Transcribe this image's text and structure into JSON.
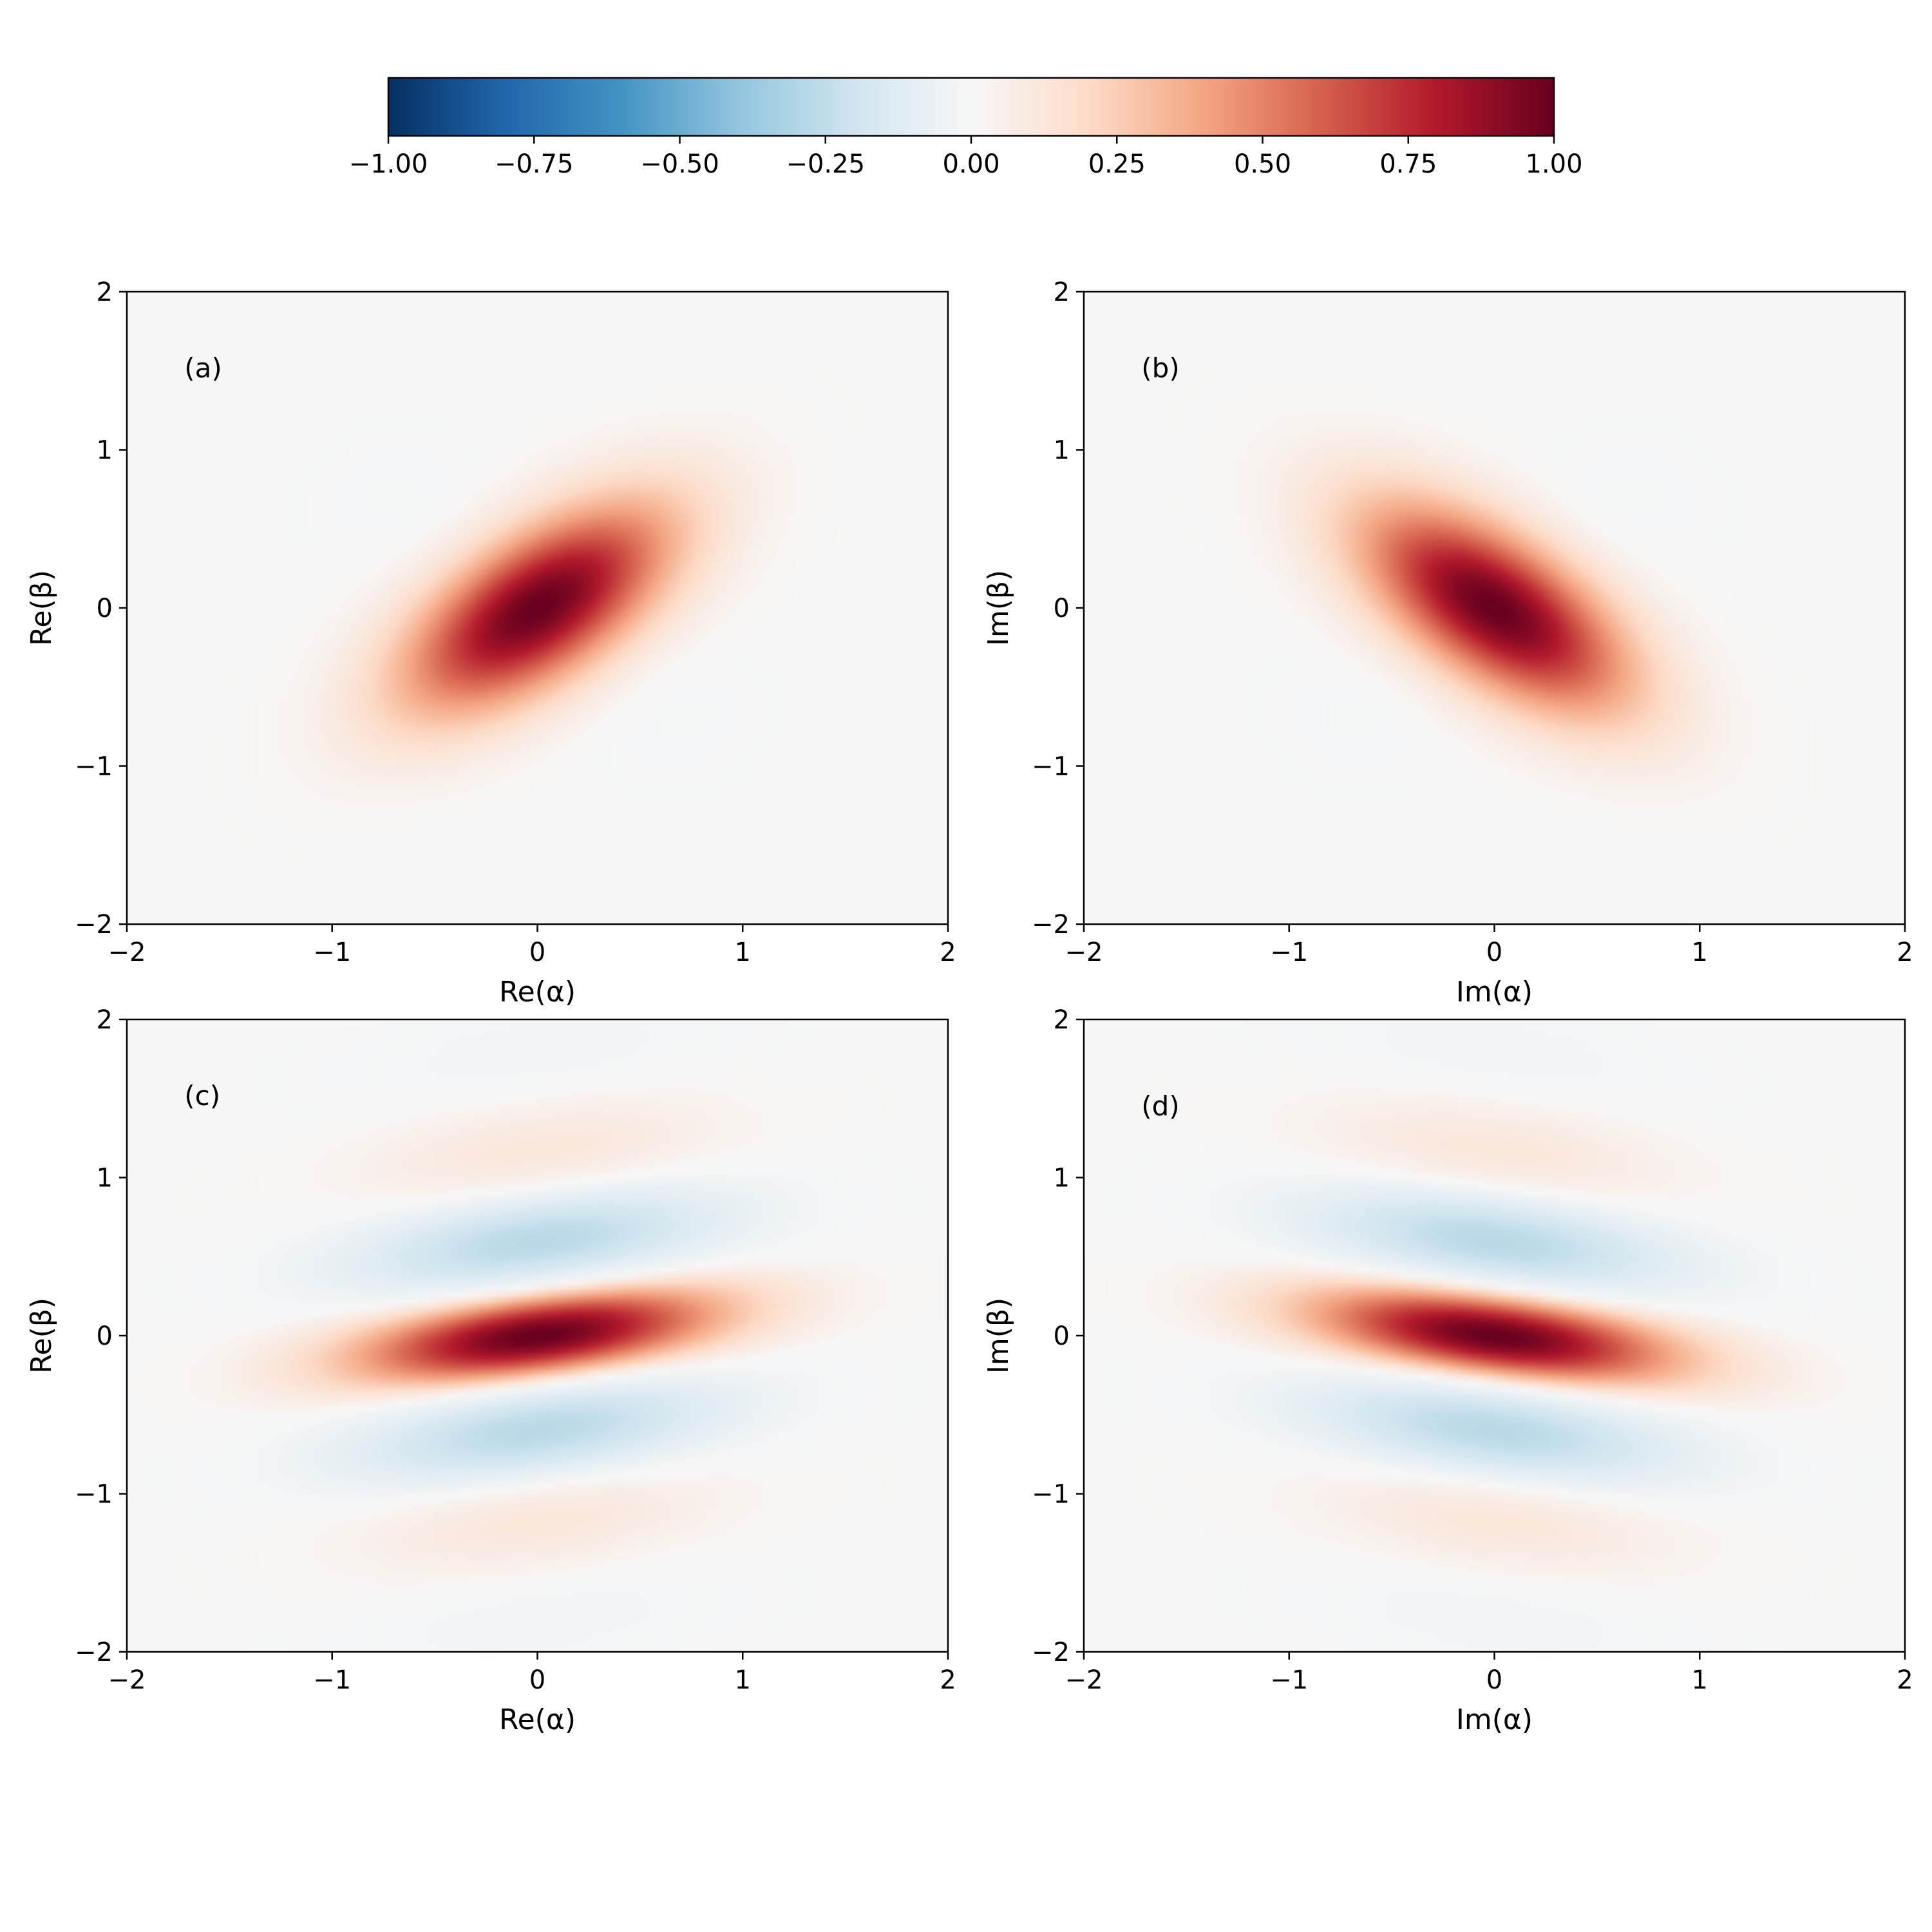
{
  "colorbar": {
    "colormap": "RdBu_r",
    "min": -1.0,
    "max": 1.0,
    "tick_labels": [
      "−1.00",
      "−0.75",
      "−0.50",
      "−0.25",
      "0.00",
      "0.25",
      "0.50",
      "0.75",
      "1.00"
    ],
    "tick_values": [
      -1.0,
      -0.75,
      -0.5,
      -0.25,
      0.0,
      0.25,
      0.5,
      0.75,
      1.0
    ]
  },
  "chart_data": [
    {
      "type": "heatmap",
      "panel_label": "(a)",
      "xlabel": "Re(α)",
      "ylabel": "Re(β)",
      "xlim": [
        -2,
        2
      ],
      "ylim": [
        -2,
        2
      ],
      "x_tick_values": [
        -2,
        -1,
        0,
        1,
        2
      ],
      "x_tick_labels": [
        "−2",
        "−1",
        "0",
        "1",
        "2"
      ],
      "y_tick_values": [
        -2,
        -1,
        0,
        1,
        2
      ],
      "y_tick_labels": [
        "−2",
        "−1",
        "0",
        "1",
        "2"
      ],
      "peak_value": 1.0,
      "features": [
        {
          "center": [
            0,
            0
          ],
          "value": 1.0,
          "shape": "elongated along Re(β)=Re(α) diagonal, major std ~0.58, minor std ~0.28"
        },
        {
          "center": [
            -0.6,
            0.6
          ],
          "value": -0.02
        },
        {
          "center": [
            0.6,
            -0.6
          ],
          "value": -0.02
        }
      ]
    },
    {
      "type": "heatmap",
      "panel_label": "(b)",
      "xlabel": "Im(α)",
      "ylabel": "Im(β)",
      "xlim": [
        -2,
        2
      ],
      "ylim": [
        -2,
        2
      ],
      "x_tick_values": [
        -2,
        -1,
        0,
        1,
        2
      ],
      "x_tick_labels": [
        "−2",
        "−1",
        "0",
        "1",
        "2"
      ],
      "y_tick_values": [
        -2,
        -1,
        0,
        1,
        2
      ],
      "y_tick_labels": [
        "−2",
        "−1",
        "0",
        "1",
        "2"
      ],
      "peak_value": 1.0,
      "features": [
        {
          "center": [
            0,
            0
          ],
          "value": 1.0,
          "shape": "elongated along Im(β)=−Im(α) anti-diagonal, major std ~0.58, minor std ~0.28"
        },
        {
          "center": [
            0.6,
            0.6
          ],
          "value": -0.02
        },
        {
          "center": [
            -0.6,
            -0.6
          ],
          "value": -0.02
        }
      ]
    },
    {
      "type": "heatmap",
      "panel_label": "(c)",
      "xlabel": "Re(α)",
      "ylabel": "Re(β)",
      "xlim": [
        -2,
        2
      ],
      "ylim": [
        -2,
        2
      ],
      "x_tick_values": [
        -2,
        -1,
        0,
        1,
        2
      ],
      "x_tick_labels": [
        "−2",
        "−1",
        "0",
        "1",
        "2"
      ],
      "y_tick_values": [
        -2,
        -1,
        0,
        1,
        2
      ],
      "y_tick_labels": [
        "−2",
        "−1",
        "0",
        "1",
        "2"
      ],
      "peak_value": 1.0,
      "features": [
        {
          "center": [
            0,
            0
          ],
          "value": 1.0
        },
        {
          "center": [
            0.1,
            0.65
          ],
          "value": -0.35
        },
        {
          "center": [
            -0.1,
            -0.65
          ],
          "value": -0.35
        },
        {
          "center": [
            0.2,
            1.25
          ],
          "value": 0.3
        },
        {
          "center": [
            -0.2,
            -1.25
          ],
          "value": 0.3
        }
      ]
    },
    {
      "type": "heatmap",
      "panel_label": "(d)",
      "xlabel": "Im(α)",
      "ylabel": "Im(β)",
      "xlim": [
        -2,
        2
      ],
      "ylim": [
        -2,
        2
      ],
      "x_tick_values": [
        -2,
        -1,
        0,
        1,
        2
      ],
      "x_tick_labels": [
        "−2",
        "−1",
        "0",
        "1",
        "2"
      ],
      "y_tick_values": [
        -2,
        -1,
        0,
        1,
        2
      ],
      "y_tick_labels": [
        "−2",
        "−1",
        "0",
        "1",
        "2"
      ],
      "peak_value": 1.0,
      "features": [
        {
          "center": [
            0,
            0
          ],
          "value": 1.0
        },
        {
          "center": [
            -0.1,
            0.65
          ],
          "value": -0.35
        },
        {
          "center": [
            0.1,
            -0.65
          ],
          "value": -0.35
        },
        {
          "center": [
            -0.2,
            1.25
          ],
          "value": 0.3
        },
        {
          "center": [
            0.2,
            -1.25
          ],
          "value": 0.3
        }
      ]
    }
  ]
}
